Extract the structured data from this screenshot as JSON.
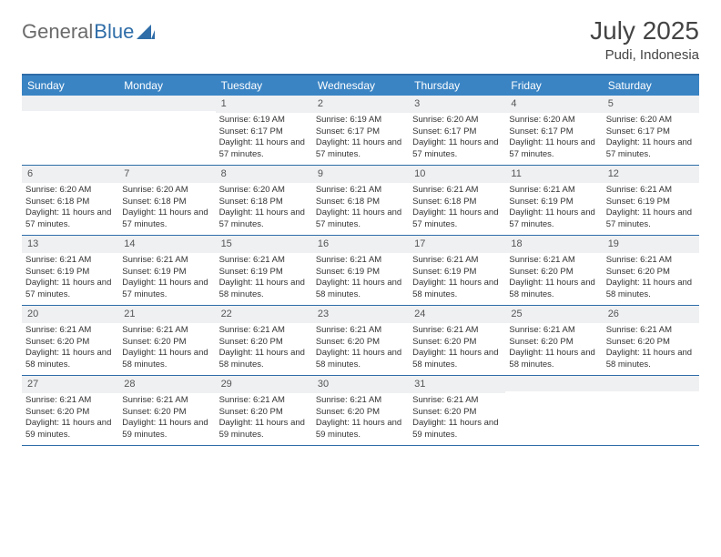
{
  "logo": {
    "text1": "General",
    "text2": "Blue"
  },
  "header": {
    "month": "July 2025",
    "location": "Pudi, Indonesia"
  },
  "weekdays": [
    "Sunday",
    "Monday",
    "Tuesday",
    "Wednesday",
    "Thursday",
    "Friday",
    "Saturday"
  ],
  "colors": {
    "accent": "#3a84c4",
    "border": "#2f6da8",
    "daybar": "#eef0f2",
    "text": "#333333"
  },
  "layout": {
    "columns": 7,
    "rows": 5,
    "first_weekday_index": 2,
    "days_in_month": 31
  },
  "days": [
    {
      "n": 1,
      "sunrise": "6:19 AM",
      "sunset": "6:17 PM",
      "daylight": "11 hours and 57 minutes."
    },
    {
      "n": 2,
      "sunrise": "6:19 AM",
      "sunset": "6:17 PM",
      "daylight": "11 hours and 57 minutes."
    },
    {
      "n": 3,
      "sunrise": "6:20 AM",
      "sunset": "6:17 PM",
      "daylight": "11 hours and 57 minutes."
    },
    {
      "n": 4,
      "sunrise": "6:20 AM",
      "sunset": "6:17 PM",
      "daylight": "11 hours and 57 minutes."
    },
    {
      "n": 5,
      "sunrise": "6:20 AM",
      "sunset": "6:17 PM",
      "daylight": "11 hours and 57 minutes."
    },
    {
      "n": 6,
      "sunrise": "6:20 AM",
      "sunset": "6:18 PM",
      "daylight": "11 hours and 57 minutes."
    },
    {
      "n": 7,
      "sunrise": "6:20 AM",
      "sunset": "6:18 PM",
      "daylight": "11 hours and 57 minutes."
    },
    {
      "n": 8,
      "sunrise": "6:20 AM",
      "sunset": "6:18 PM",
      "daylight": "11 hours and 57 minutes."
    },
    {
      "n": 9,
      "sunrise": "6:21 AM",
      "sunset": "6:18 PM",
      "daylight": "11 hours and 57 minutes."
    },
    {
      "n": 10,
      "sunrise": "6:21 AM",
      "sunset": "6:18 PM",
      "daylight": "11 hours and 57 minutes."
    },
    {
      "n": 11,
      "sunrise": "6:21 AM",
      "sunset": "6:19 PM",
      "daylight": "11 hours and 57 minutes."
    },
    {
      "n": 12,
      "sunrise": "6:21 AM",
      "sunset": "6:19 PM",
      "daylight": "11 hours and 57 minutes."
    },
    {
      "n": 13,
      "sunrise": "6:21 AM",
      "sunset": "6:19 PM",
      "daylight": "11 hours and 57 minutes."
    },
    {
      "n": 14,
      "sunrise": "6:21 AM",
      "sunset": "6:19 PM",
      "daylight": "11 hours and 57 minutes."
    },
    {
      "n": 15,
      "sunrise": "6:21 AM",
      "sunset": "6:19 PM",
      "daylight": "11 hours and 58 minutes."
    },
    {
      "n": 16,
      "sunrise": "6:21 AM",
      "sunset": "6:19 PM",
      "daylight": "11 hours and 58 minutes."
    },
    {
      "n": 17,
      "sunrise": "6:21 AM",
      "sunset": "6:19 PM",
      "daylight": "11 hours and 58 minutes."
    },
    {
      "n": 18,
      "sunrise": "6:21 AM",
      "sunset": "6:20 PM",
      "daylight": "11 hours and 58 minutes."
    },
    {
      "n": 19,
      "sunrise": "6:21 AM",
      "sunset": "6:20 PM",
      "daylight": "11 hours and 58 minutes."
    },
    {
      "n": 20,
      "sunrise": "6:21 AM",
      "sunset": "6:20 PM",
      "daylight": "11 hours and 58 minutes."
    },
    {
      "n": 21,
      "sunrise": "6:21 AM",
      "sunset": "6:20 PM",
      "daylight": "11 hours and 58 minutes."
    },
    {
      "n": 22,
      "sunrise": "6:21 AM",
      "sunset": "6:20 PM",
      "daylight": "11 hours and 58 minutes."
    },
    {
      "n": 23,
      "sunrise": "6:21 AM",
      "sunset": "6:20 PM",
      "daylight": "11 hours and 58 minutes."
    },
    {
      "n": 24,
      "sunrise": "6:21 AM",
      "sunset": "6:20 PM",
      "daylight": "11 hours and 58 minutes."
    },
    {
      "n": 25,
      "sunrise": "6:21 AM",
      "sunset": "6:20 PM",
      "daylight": "11 hours and 58 minutes."
    },
    {
      "n": 26,
      "sunrise": "6:21 AM",
      "sunset": "6:20 PM",
      "daylight": "11 hours and 58 minutes."
    },
    {
      "n": 27,
      "sunrise": "6:21 AM",
      "sunset": "6:20 PM",
      "daylight": "11 hours and 59 minutes."
    },
    {
      "n": 28,
      "sunrise": "6:21 AM",
      "sunset": "6:20 PM",
      "daylight": "11 hours and 59 minutes."
    },
    {
      "n": 29,
      "sunrise": "6:21 AM",
      "sunset": "6:20 PM",
      "daylight": "11 hours and 59 minutes."
    },
    {
      "n": 30,
      "sunrise": "6:21 AM",
      "sunset": "6:20 PM",
      "daylight": "11 hours and 59 minutes."
    },
    {
      "n": 31,
      "sunrise": "6:21 AM",
      "sunset": "6:20 PM",
      "daylight": "11 hours and 59 minutes."
    }
  ],
  "labels": {
    "sunrise": "Sunrise:",
    "sunset": "Sunset:",
    "daylight": "Daylight:"
  }
}
